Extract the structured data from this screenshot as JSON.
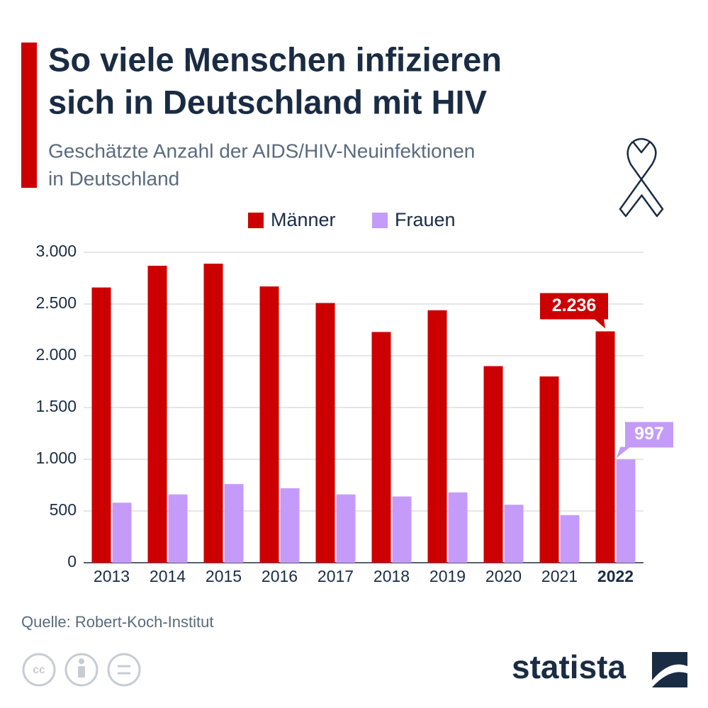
{
  "chart_data": {
    "type": "bar",
    "title": [
      "So viele Menschen infizieren",
      "sich in Deutschland mit HIV"
    ],
    "subtitle": [
      "Geschätzte Anzahl der AIDS/HIV-Neuinfektionen",
      "in Deutschland"
    ],
    "categories": [
      "2013",
      "2014",
      "2015",
      "2016",
      "2017",
      "2018",
      "2019",
      "2020",
      "2021",
      "2022"
    ],
    "series": [
      {
        "name": "Männer",
        "color": "#cc0000",
        "values": [
          2660,
          2870,
          2890,
          2670,
          2510,
          2230,
          2440,
          1900,
          1800,
          2236
        ],
        "value_labels": [
          null,
          null,
          null,
          null,
          null,
          null,
          null,
          null,
          null,
          "2.236"
        ]
      },
      {
        "name": "Frauen",
        "color": "#c49bf8",
        "values": [
          580,
          660,
          760,
          720,
          660,
          640,
          680,
          560,
          460,
          997
        ]
      }
    ],
    "ylim": [
      0,
      3000
    ],
    "yticks": [
      0,
      500,
      {
        "value": 1000,
        "label": "1.000"
      },
      {
        "value": 1500,
        "label": "1.500"
      },
      {
        "value": 2000,
        "label": "2.000"
      },
      {
        "value": 2500,
        "label": "2.500"
      },
      {
        "value": 3000,
        "label": "3.000"
      }
    ],
    "grid": true,
    "legend": "top",
    "source": "Quelle: Robert-Koch-Institut",
    "logo": "statista"
  }
}
